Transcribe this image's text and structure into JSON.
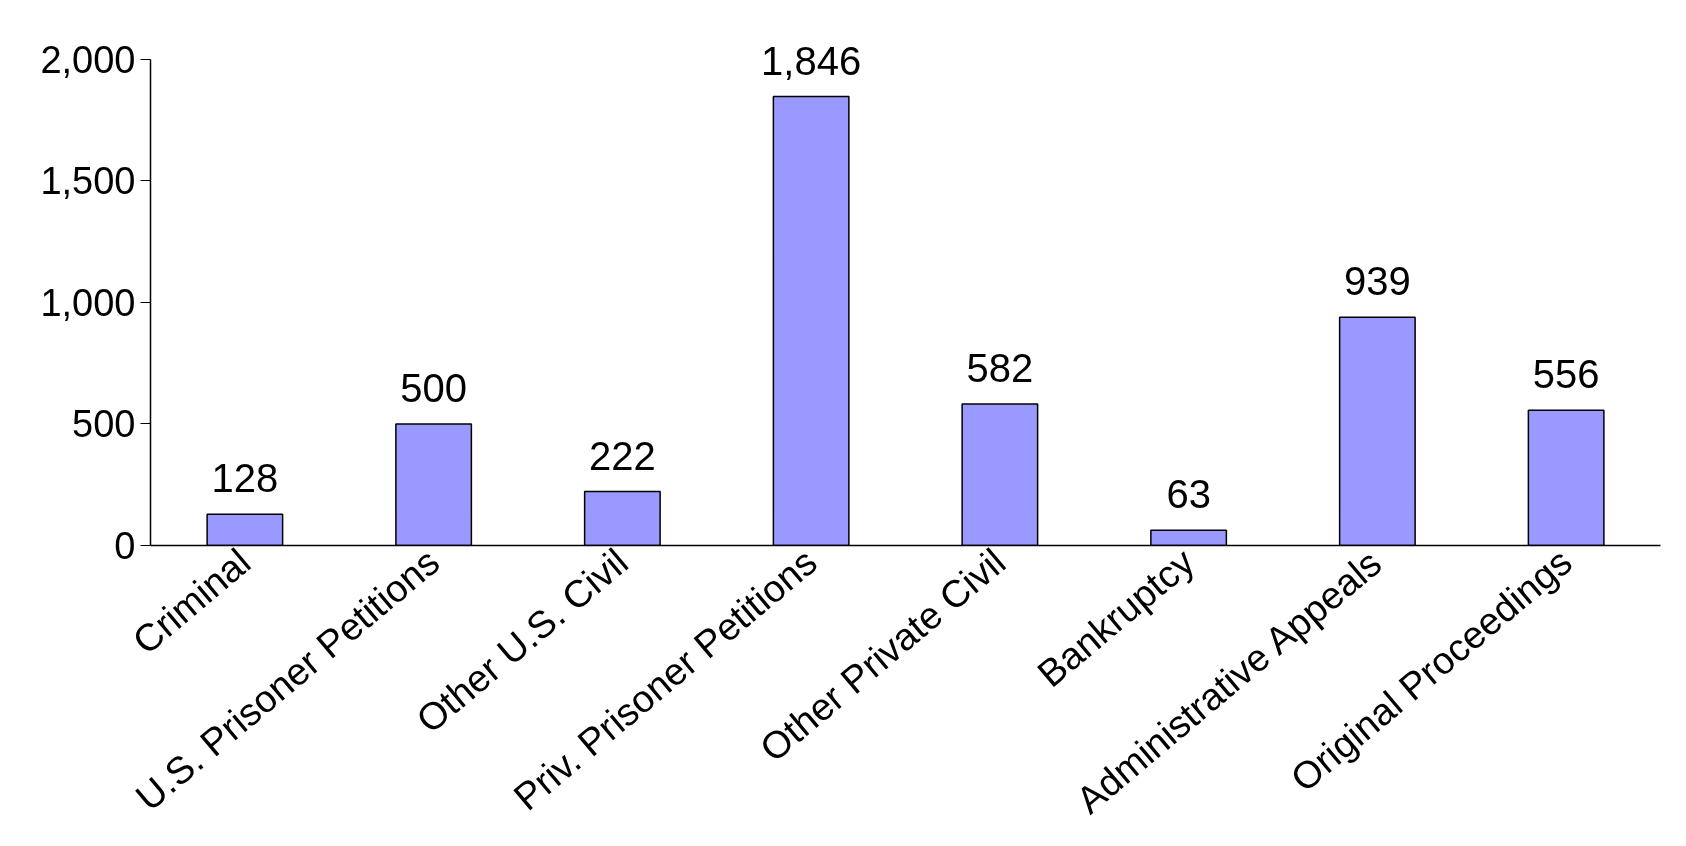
{
  "chart_data": {
    "type": "bar",
    "categories": [
      "Criminal",
      "U.S. Prisoner Petitions",
      "Other U.S. Civil",
      "Priv. Prisoner Petitions",
      "Other Private Civil",
      "Bankruptcy",
      "Administrative Appeals",
      "Original Proceedings"
    ],
    "values": [
      128,
      500,
      222,
      1846,
      582,
      63,
      939,
      556
    ],
    "color": "#9999ff",
    "ylim": [
      0,
      2000
    ],
    "yticks": [
      0,
      500,
      {
        "value": 1000,
        "label": "1,000"
      },
      {
        "value": 1500,
        "label": "1,500"
      },
      {
        "value": 2000,
        "label": "2,000"
      }
    ],
    "value_labels": [
      "128",
      "500",
      "222",
      "1,846",
      "582",
      "63",
      "939",
      "556"
    ],
    "grid": false
  }
}
